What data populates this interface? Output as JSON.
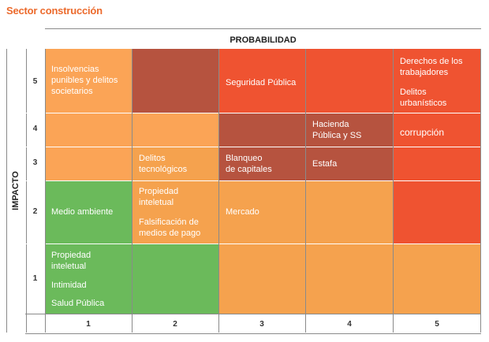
{
  "title": "Sector construcción",
  "x_axis_label": "PROBABILIDAD",
  "y_axis_label": "IMPACTO",
  "columns": [
    "1",
    "2",
    "3",
    "4",
    "5"
  ],
  "rows": [
    "5",
    "4",
    "3",
    "2",
    "1"
  ],
  "colors": {
    "light_orange": "#fba456",
    "orange": "#f5a24e",
    "dark_red": "#b6533f",
    "red_orange": "#ef5331",
    "green": "#6bba5b"
  },
  "risks": {
    "insolvencias": "Insolvencias\npunibles y delitos\nsocietarios",
    "seguridad_publica": "Seguridad Pública",
    "derechos_trabajadores": "Derechos de los\ntrabajadores",
    "delitos_urbanisticos": "Delitos\nurbanísticos",
    "hacienda": "Hacienda\nPública y SS",
    "corrupcion": "corrupción",
    "delitos_tecnologicos": "Delitos\ntecnológicos",
    "blanqueo": "Blanqueo\nde capitales",
    "estafa": "Estafa",
    "medio_ambiente": "Medio ambiente",
    "propiedad_intelectual_2": "Propiedad\ninteletual",
    "falsificacion": "Falsificación de\nmedios de pago",
    "mercado": "Mercado",
    "propiedad_intelectual_1": "Propiedad\ninteletual",
    "intimidad": "Intimidad",
    "salud_publica": "Salud Pública"
  }
}
